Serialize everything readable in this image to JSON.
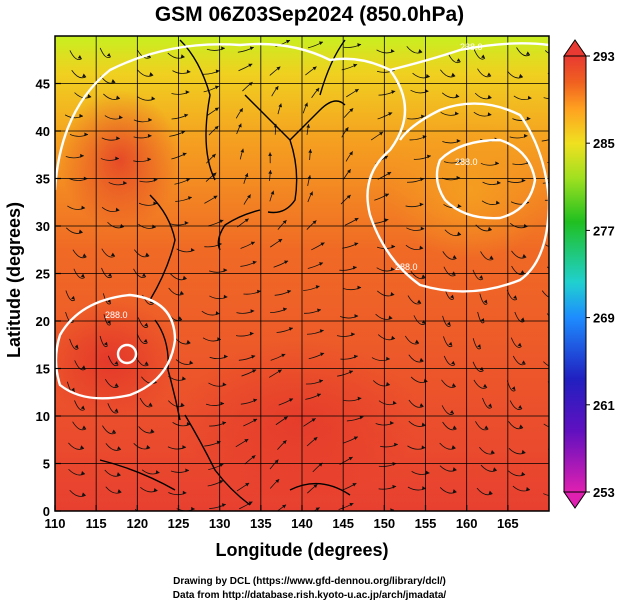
{
  "title": "GSM 06Z03Sep2024 (850.0hPa)",
  "axes": {
    "xlabel": "Longitude (degrees)",
    "ylabel": "Latitude  (degrees)",
    "x_ticks": [
      "110",
      "115",
      "120",
      "125",
      "130",
      "135",
      "140",
      "145",
      "150",
      "155",
      "160",
      "165"
    ],
    "y_ticks": [
      "0",
      "5",
      "10",
      "15",
      "20",
      "25",
      "30",
      "35",
      "40",
      "45"
    ],
    "xlim": [
      110,
      170
    ],
    "ylim": [
      0,
      50
    ]
  },
  "colorbar": {
    "labels": [
      "293",
      "285",
      "277",
      "269",
      "261",
      "253"
    ],
    "range": [
      253,
      293
    ],
    "colors": [
      "#e020b0",
      "#2020c0",
      "#1e8cff",
      "#20d0d0",
      "#20c020",
      "#a0e020",
      "#f0e020",
      "#ffa020",
      "#f06020",
      "#e83a32"
    ]
  },
  "contours": [
    {
      "label": "288.0"
    },
    {
      "label": "288.0"
    },
    {
      "label": "288.0"
    },
    {
      "label": "288.0"
    }
  ],
  "credits": {
    "line1": "Drawing by DCL (https://www.gfd-dennou.org/library/dcl/)",
    "line2": "Data from http://database.rish.kyoto-u.ac.jp/arch/jmadata/"
  },
  "chart_data": {
    "type": "heatmap",
    "title": "GSM 06Z03Sep2024 (850.0hPa)",
    "xlabel": "Longitude (degrees)",
    "ylabel": "Latitude  (degrees)",
    "xlim": [
      110,
      170
    ],
    "ylim": [
      0,
      50
    ],
    "colorbar_range": [
      253,
      293
    ],
    "contour_level": 288.0,
    "grid": true,
    "overlay": "wind streamlines"
  }
}
